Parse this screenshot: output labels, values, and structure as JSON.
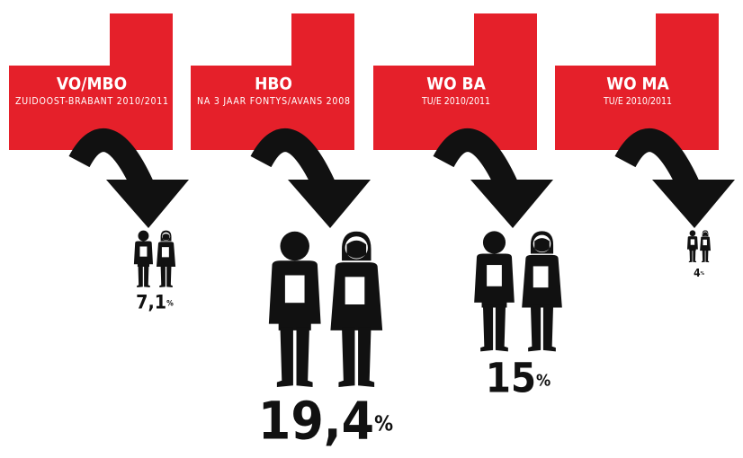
{
  "chart_data": {
    "type": "pictogram",
    "categories": [
      "VO/MBO",
      "HBO",
      "WO BA",
      "WO MA"
    ],
    "subtitles": [
      "ZUIDOOST-BRABANT 2010/2011",
      "NA 3 JAAR FONTYS/AVANS 2008",
      "TU/E 2010/2011",
      "TU/E 2010/2011"
    ],
    "values": [
      7.1,
      19.4,
      15,
      4
    ],
    "value_labels": [
      "7,1%",
      "19,4%",
      "15%",
      "4%"
    ],
    "color": "#e5202a"
  }
}
